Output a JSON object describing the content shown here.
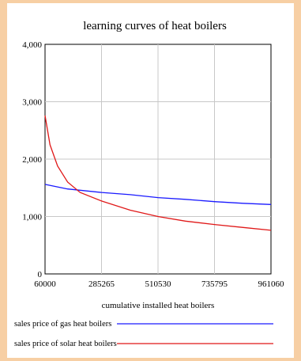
{
  "chart_data": {
    "type": "line",
    "title": "learning curves of heat boilers",
    "xlabel": "cumulative installed heat boilers",
    "ylabel": "",
    "xlim": [
      60000,
      961060
    ],
    "ylim": [
      0,
      4000
    ],
    "x_ticks": [
      "60000",
      "285265",
      "510530",
      "735795",
      "961060"
    ],
    "y_ticks": [
      "0",
      "1,000",
      "2,000",
      "3,000",
      "4,000"
    ],
    "grid": true,
    "legend_position": "bottom",
    "series": [
      {
        "name": "sales price of gas heat boilers",
        "color": "#1a1aff",
        "x": [
          60000,
          150000,
          285265,
          400000,
          510530,
          620000,
          735795,
          850000,
          961060
        ],
        "y": [
          1560,
          1480,
          1420,
          1380,
          1330,
          1300,
          1260,
          1230,
          1210
        ]
      },
      {
        "name": "sales price of solar heat boilers",
        "color": "#e01818",
        "x": [
          60000,
          80000,
          110000,
          150000,
          200000,
          285265,
          400000,
          510530,
          620000,
          735795,
          850000,
          961060
        ],
        "y": [
          2760,
          2250,
          1880,
          1600,
          1420,
          1270,
          1110,
          1000,
          920,
          860,
          810,
          760
        ]
      }
    ]
  }
}
